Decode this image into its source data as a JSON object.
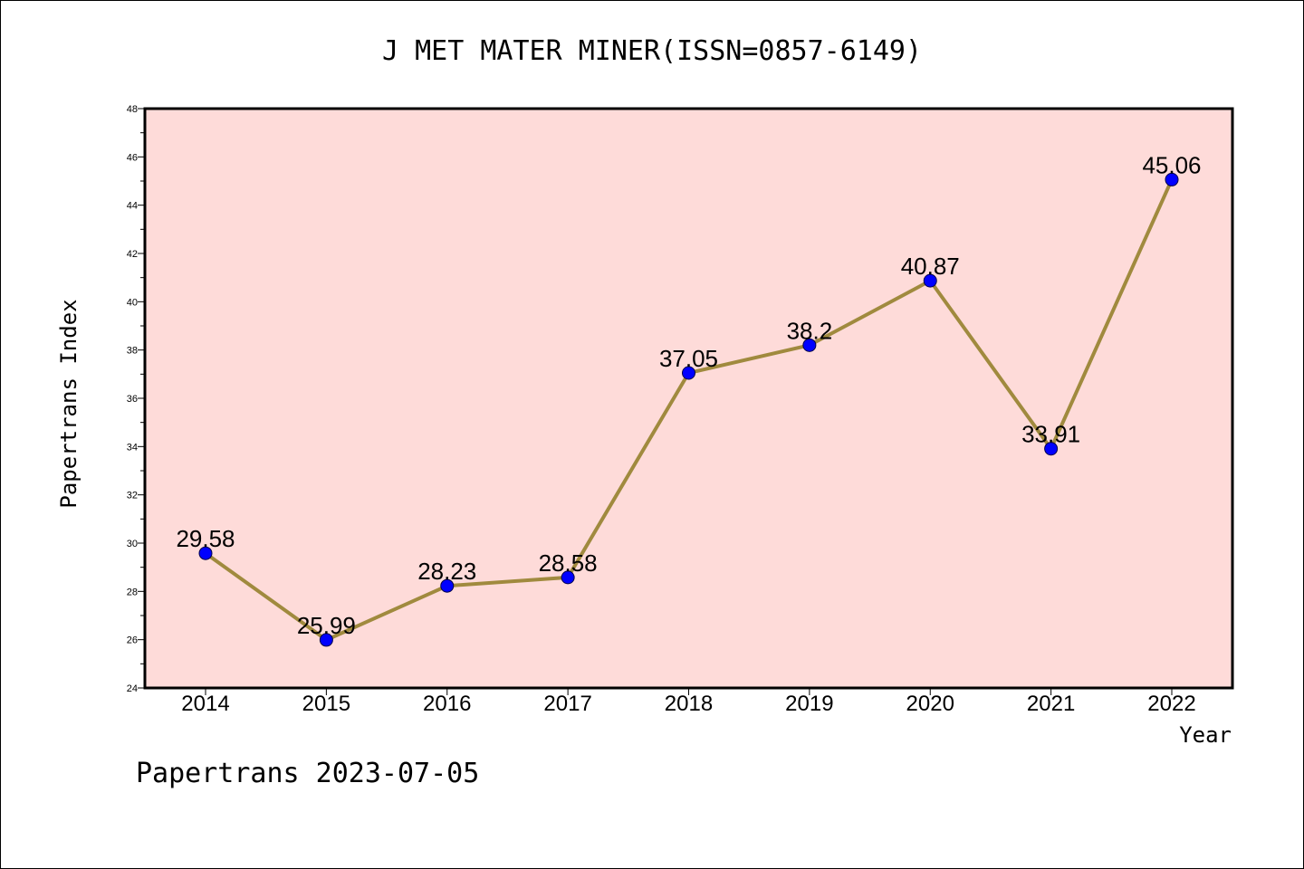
{
  "chart_data": {
    "type": "line",
    "title": "J MET MATER MINER(ISSN=0857-6149)",
    "xlabel": "Year",
    "ylabel": "Papertrans Index",
    "footer": "Papertrans 2023-07-05",
    "categories": [
      "2014",
      "2015",
      "2016",
      "2017",
      "2018",
      "2019",
      "2020",
      "2021",
      "2022"
    ],
    "values": [
      29.58,
      25.99,
      28.23,
      28.58,
      37.05,
      38.2,
      40.87,
      33.91,
      45.06
    ],
    "data_labels": [
      "29.58",
      "25.99",
      "28.23",
      "28.58",
      "37.05",
      "38.2",
      "40.87",
      "33.91",
      "45.06"
    ],
    "ylim": [
      24,
      48
    ],
    "yticks": [
      24,
      26,
      28,
      30,
      32,
      34,
      36,
      38,
      40,
      42,
      44,
      46,
      48
    ],
    "grid": false,
    "colors": {
      "plot_background": "#fedbd9",
      "line": "#a08a3e",
      "marker": "#0000ff"
    }
  }
}
